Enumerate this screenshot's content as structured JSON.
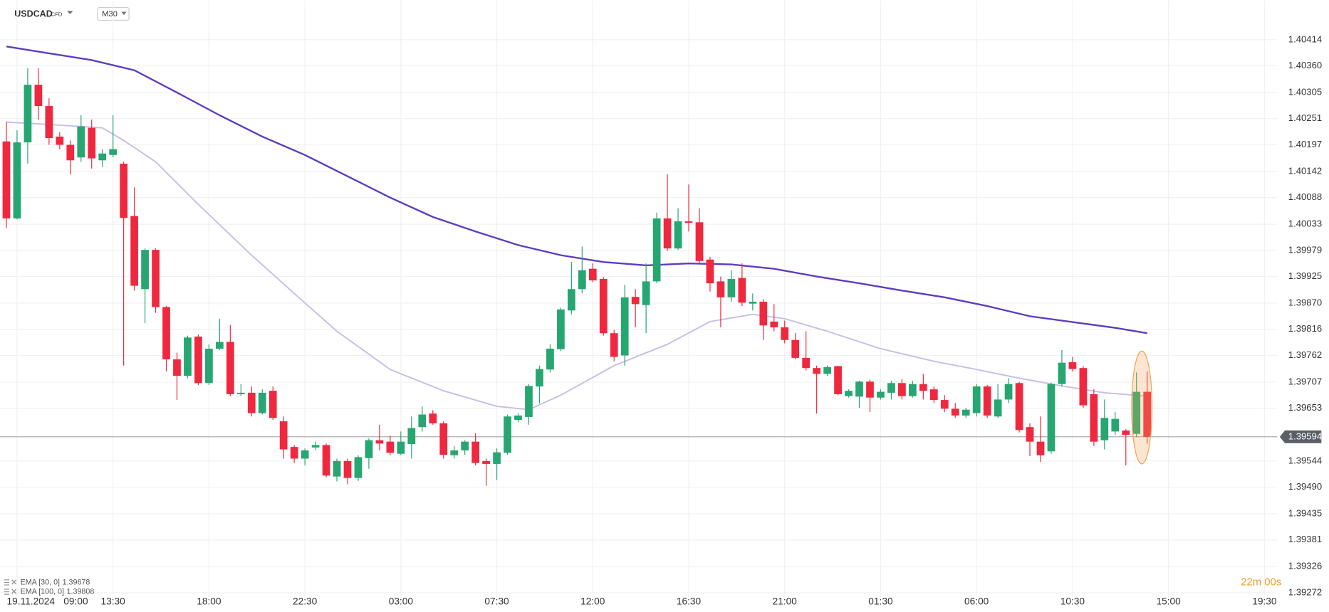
{
  "chart_data": {
    "type": "candlestick",
    "symbol": "USDCAD",
    "instrument_type": "CFD",
    "timeframe": "M30",
    "date_label": "19.11.2024",
    "countdown": "22m 00s",
    "up_color": "#26a671",
    "down_color": "#f0283f",
    "last_price": 1.39594,
    "xlim": [
      -0.6,
      119.2
    ],
    "ylim": [
      1.3926,
      1.40442
    ],
    "grid": true,
    "xticks": [
      {
        "value": 1,
        "label": "09:00"
      },
      {
        "value": 10,
        "label": "13:30"
      },
      {
        "value": 19,
        "label": "18:00"
      },
      {
        "value": 28,
        "label": "22:30"
      },
      {
        "value": 37,
        "label": "03:00"
      },
      {
        "value": 46,
        "label": "07:30"
      },
      {
        "value": 55,
        "label": "12:00"
      },
      {
        "value": 64,
        "label": "16:30"
      },
      {
        "value": 73,
        "label": "21:00"
      },
      {
        "value": 82,
        "label": "01:30"
      },
      {
        "value": 91,
        "label": "06:00"
      },
      {
        "value": 100,
        "label": "10:30"
      },
      {
        "value": 109,
        "label": "15:00"
      },
      {
        "value": 118,
        "label": "19:30"
      }
    ],
    "yticks": [
      1.40414,
      {
        "value": 1.4036,
        "label": "1.40360"
      },
      1.40305,
      1.40251,
      1.40197,
      1.40142,
      1.40088,
      1.40033,
      1.39979,
      1.39925,
      {
        "value": 1.3987,
        "label": "1.39870"
      },
      1.39816,
      1.39762,
      1.39707,
      1.39653,
      1.39544,
      {
        "value": 1.3949,
        "label": "1.39490"
      },
      1.39435,
      1.39381,
      1.39326,
      1.39272
    ],
    "ohlc": [
      [
        1.40204,
        1.40244,
        1.40025,
        1.40045
      ],
      [
        1.40045,
        1.40227,
        1.40043,
        1.40202
      ],
      [
        1.40202,
        1.40355,
        1.40158,
        1.40321
      ],
      [
        1.40321,
        1.40355,
        1.40249,
        1.40277
      ],
      [
        1.40277,
        1.40293,
        1.40197,
        1.40211
      ],
      [
        1.40214,
        1.40223,
        1.40188,
        1.40197
      ],
      [
        1.40197,
        1.40206,
        1.40136,
        1.40165
      ],
      [
        1.40171,
        1.40258,
        1.40162,
        1.40235
      ],
      [
        1.40232,
        1.40249,
        1.40148,
        1.40169
      ],
      [
        1.40165,
        1.40188,
        1.40151,
        1.40179
      ],
      [
        1.40176,
        1.40258,
        1.40171,
        1.40188
      ],
      [
        1.40158,
        1.40162,
        1.39741,
        1.40046
      ],
      [
        1.4005,
        1.40109,
        1.39896,
        1.39906
      ],
      [
        1.39899,
        1.39983,
        1.39829,
        1.3998
      ],
      [
        1.3998,
        1.39983,
        1.3985,
        1.39862
      ],
      [
        1.39862,
        1.39864,
        1.39729,
        1.39754
      ],
      [
        1.39754,
        1.39768,
        1.3967,
        1.3972
      ],
      [
        1.3972,
        1.39803,
        1.39715,
        1.39799
      ],
      [
        1.39801,
        1.39805,
        1.39701,
        1.39705
      ],
      [
        1.39705,
        1.39785,
        1.39701,
        1.39776
      ],
      [
        1.39776,
        1.39838,
        1.39773,
        1.3979
      ],
      [
        1.3979,
        1.39825,
        1.39678,
        1.39682
      ],
      [
        1.39682,
        1.39703,
        1.39678,
        1.39685
      ],
      [
        1.39685,
        1.39698,
        1.39636,
        1.39643
      ],
      [
        1.39643,
        1.39692,
        1.3964,
        1.39685
      ],
      [
        1.39689,
        1.39698,
        1.39629,
        1.39633
      ],
      [
        1.39626,
        1.39636,
        1.39549,
        1.39568
      ],
      [
        1.39573,
        1.39577,
        1.3954,
        1.39549
      ],
      [
        1.39549,
        1.3957,
        1.39535,
        1.39566
      ],
      [
        1.39572,
        1.39584,
        1.39566,
        1.39577
      ],
      [
        1.39577,
        1.3958,
        1.3951,
        1.39514
      ],
      [
        1.39512,
        1.39549,
        1.39502,
        1.39544
      ],
      [
        1.39544,
        1.39549,
        1.39496,
        1.39509
      ],
      [
        1.39509,
        1.39556,
        1.39503,
        1.39552
      ],
      [
        1.3955,
        1.39591,
        1.39528,
        1.39587
      ],
      [
        1.39587,
        1.39619,
        1.39566,
        1.3958
      ],
      [
        1.39584,
        1.39596,
        1.39556,
        1.39561
      ],
      [
        1.39559,
        1.39605,
        1.39556,
        1.39584
      ],
      [
        1.39579,
        1.39636,
        1.39549,
        1.39612
      ],
      [
        1.39614,
        1.39657,
        1.39605,
        1.3964
      ],
      [
        1.39642,
        1.39649,
        1.39619,
        1.39622
      ],
      [
        1.39622,
        1.39626,
        1.39549,
        1.39557
      ],
      [
        1.39556,
        1.39575,
        1.39549,
        1.39566
      ],
      [
        1.39566,
        1.39587,
        1.39557,
        1.39584
      ],
      [
        1.39584,
        1.39601,
        1.39535,
        1.3954
      ],
      [
        1.39544,
        1.39549,
        1.39493,
        1.39538
      ],
      [
        1.39538,
        1.3957,
        1.39505,
        1.39562
      ],
      [
        1.39561,
        1.3964,
        1.39557,
        1.39636
      ],
      [
        1.39629,
        1.39643,
        1.39624,
        1.39638
      ],
      [
        1.39635,
        1.39703,
        1.39619,
        1.39699
      ],
      [
        1.39698,
        1.39741,
        1.39663,
        1.39734
      ],
      [
        1.39733,
        1.39785,
        1.39727,
        1.39776
      ],
      [
        1.39775,
        1.39861,
        1.39771,
        1.39857
      ],
      [
        1.39855,
        1.39955,
        1.39847,
        1.39899
      ],
      [
        1.39899,
        1.39987,
        1.3989,
        1.39938
      ],
      [
        1.39941,
        1.39952,
        1.39913,
        1.39917
      ],
      [
        1.3992,
        1.39924,
        1.39803,
        1.39808
      ],
      [
        1.39808,
        1.39815,
        1.3975,
        1.39759
      ],
      [
        1.39762,
        1.39908,
        1.39741,
        1.39882
      ],
      [
        1.39883,
        1.39899,
        1.3982,
        1.39868
      ],
      [
        1.39866,
        1.39952,
        1.39808,
        1.39915
      ],
      [
        1.39915,
        1.40057,
        1.39911,
        1.40045
      ],
      [
        1.40045,
        1.40136,
        1.39978,
        1.39983
      ],
      [
        1.39983,
        1.40066,
        1.3998,
        1.40039
      ],
      [
        1.40039,
        1.40115,
        1.40018,
        1.40036
      ],
      [
        1.40037,
        1.40066,
        1.39952,
        1.39957
      ],
      [
        1.3996,
        1.39966,
        1.39894,
        1.39911
      ],
      [
        1.39915,
        1.39925,
        1.3982,
        1.39882
      ],
      [
        1.39882,
        1.39938,
        1.39873,
        1.3992
      ],
      [
        1.39922,
        1.39952,
        1.39864,
        1.39871
      ],
      [
        1.39869,
        1.3989,
        1.39855,
        1.39873
      ],
      [
        1.39873,
        1.39878,
        1.39794,
        1.39824
      ],
      [
        1.39832,
        1.39868,
        1.39812,
        1.3982
      ],
      [
        1.3982,
        1.39834,
        1.39787,
        1.39794
      ],
      [
        1.39794,
        1.39808,
        1.39754,
        1.39757
      ],
      [
        1.39757,
        1.39812,
        1.39731,
        1.39736
      ],
      [
        1.39736,
        1.39741,
        1.39642,
        1.39724
      ],
      [
        1.39724,
        1.39741,
        1.3972,
        1.39738
      ],
      [
        1.3974,
        1.39741,
        1.3968,
        1.39682
      ],
      [
        1.39678,
        1.39692,
        1.39675,
        1.39689
      ],
      [
        1.39677,
        1.3971,
        1.39654,
        1.39708
      ],
      [
        1.39708,
        1.39712,
        1.39645,
        1.39675
      ],
      [
        1.39675,
        1.39692,
        1.39671,
        1.39687
      ],
      [
        1.39685,
        1.3971,
        1.39671,
        1.39705
      ],
      [
        1.39705,
        1.39713,
        1.39671,
        1.39678
      ],
      [
        1.39678,
        1.3971,
        1.39675,
        1.39703
      ],
      [
        1.39703,
        1.39724,
        1.39671,
        1.39689
      ],
      [
        1.39692,
        1.39698,
        1.39664,
        1.3967
      ],
      [
        1.3967,
        1.3968,
        1.39645,
        1.39652
      ],
      [
        1.39652,
        1.39664,
        1.39633,
        1.39638
      ],
      [
        1.39638,
        1.39654,
        1.39633,
        1.3965
      ],
      [
        1.39643,
        1.39703,
        1.39636,
        1.39698
      ],
      [
        1.39698,
        1.39701,
        1.39633,
        1.39638
      ],
      [
        1.39636,
        1.39703,
        1.39633,
        1.39671
      ],
      [
        1.39671,
        1.39715,
        1.39664,
        1.39703
      ],
      [
        1.39705,
        1.39708,
        1.39603,
        1.39608
      ],
      [
        1.39614,
        1.39622,
        1.39554,
        1.39584
      ],
      [
        1.39584,
        1.39636,
        1.39542,
        1.39556
      ],
      [
        1.39564,
        1.39706,
        1.39559,
        1.39703
      ],
      [
        1.39703,
        1.39773,
        1.39698,
        1.39747
      ],
      [
        1.39748,
        1.39759,
        1.39729,
        1.39734
      ],
      [
        1.39736,
        1.3974,
        1.39654,
        1.39659
      ],
      [
        1.39682,
        1.39692,
        1.39575,
        1.39584
      ],
      [
        1.39587,
        1.39671,
        1.39568,
        1.39633
      ],
      [
        1.39605,
        1.39645,
        1.39598,
        1.39631
      ],
      [
        1.39607,
        1.3961,
        1.39535,
        1.39598
      ],
      [
        1.396,
        1.39727,
        1.39593,
        1.39687
      ],
      [
        1.39687,
        1.39729,
        1.3958,
        1.39594
      ]
    ],
    "indicators": [
      {
        "name": "EMA [30, 0]",
        "value": 1.39678,
        "color": "#c8bde9",
        "x": [
          0,
          4,
          9,
          11,
          14,
          18,
          23,
          27,
          31,
          36,
          41,
          46,
          49,
          52,
          57,
          62,
          66,
          70,
          73,
          77,
          82,
          87,
          91,
          95,
          99,
          103,
          107
        ],
        "values": [
          1.40244,
          1.40239,
          1.40232,
          1.40206,
          1.40162,
          1.40074,
          1.39969,
          1.3989,
          1.39812,
          1.39733,
          1.39689,
          1.39657,
          1.3965,
          1.3968,
          1.39741,
          1.39785,
          1.39832,
          1.39847,
          1.39838,
          1.39812,
          1.39776,
          1.3975,
          1.39733,
          1.39715,
          1.39699,
          1.39685,
          1.39678
        ]
      },
      {
        "name": "EMA [100, 0]",
        "value": 1.39808,
        "color": "#5d3cc2",
        "x": [
          0,
          4,
          8,
          12,
          16,
          20,
          24,
          28,
          32,
          36,
          40,
          44,
          48,
          52,
          56,
          60,
          64,
          68,
          72,
          76,
          80,
          84,
          88,
          92,
          96,
          100,
          104,
          107
        ],
        "values": [
          1.404,
          1.40386,
          1.40372,
          1.40351,
          1.40305,
          1.40258,
          1.40214,
          1.40176,
          1.40132,
          1.40088,
          1.40048,
          1.40018,
          1.3999,
          1.39969,
          1.39955,
          1.39948,
          1.39952,
          1.3995,
          1.39941,
          1.39925,
          1.39911,
          1.39896,
          1.39882,
          1.39864,
          1.39843,
          1.39831,
          1.39819,
          1.39808
        ]
      }
    ]
  }
}
